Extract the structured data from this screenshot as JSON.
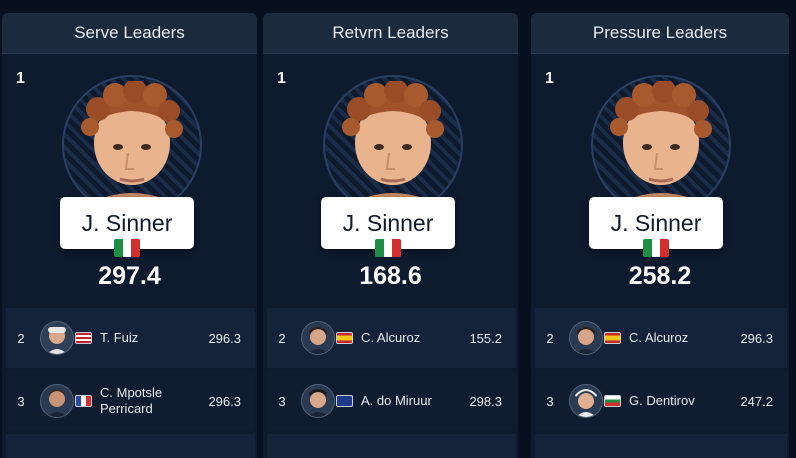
{
  "colors": {
    "background": "#07101f",
    "panel": "#0e1b2e",
    "header": "#1c2a3d",
    "card": "#ffffff"
  },
  "panels": [
    {
      "title": "Serve Leaders",
      "top": {
        "rank": "1",
        "name": "J. Sinner",
        "flag": "italy-flag",
        "score": "297.4"
      },
      "rows": [
        {
          "rank": "2",
          "name": "T. Fuiz",
          "flag": "usa-flag",
          "score": "296.3"
        },
        {
          "rank": "3",
          "name": "C. Mpotsle Perricard",
          "flag": "france-flag",
          "score": "296.3"
        }
      ]
    },
    {
      "title": "Retvrn Leaders",
      "top": {
        "rank": "1",
        "name": "J. Sinner",
        "flag": "italy-flag",
        "score": "168.6"
      },
      "rows": [
        {
          "rank": "2",
          "name": "C. Alcuroz",
          "flag": "spain-flag",
          "score": "155.2"
        },
        {
          "rank": "3",
          "name": "A. do Miruur",
          "flag": "australia-flag",
          "score": "298.3"
        }
      ]
    },
    {
      "title": "Pressure Leaders",
      "top": {
        "rank": "1",
        "name": "J. Sinner",
        "flag": "italy-flag",
        "score": "258.2"
      },
      "rows": [
        {
          "rank": "2",
          "name": "C. Alcuroz",
          "flag": "spain-flag",
          "score": "296.3"
        },
        {
          "rank": "3",
          "name": "G. Dentirov",
          "flag": "bulgaria-flag",
          "score": "247.2"
        }
      ]
    }
  ]
}
